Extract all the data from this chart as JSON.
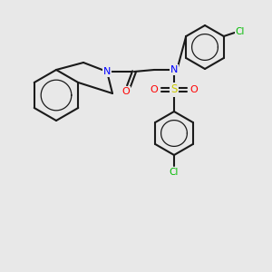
{
  "bg_color": "#e8e8e8",
  "bond_color": "#1a1a1a",
  "bond_lw": 1.5,
  "atom_colors": {
    "N": "#0000ff",
    "O": "#ff0000",
    "S": "#cccc00",
    "Cl": "#00bb00",
    "C": "#1a1a1a"
  },
  "font_size": 7.5
}
